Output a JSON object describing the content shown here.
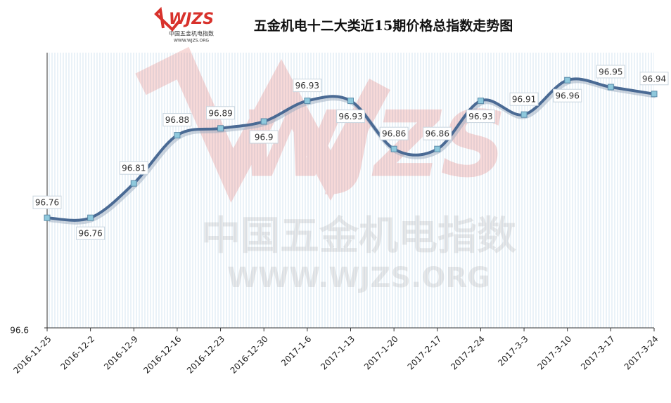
{
  "logo": {
    "mark": "WJZS",
    "name": "中国五金机电指数",
    "url": "WWW.WJZS.ORG"
  },
  "chart_data": {
    "type": "line",
    "title": "五金机电十二大类近15期价格总指数走势图",
    "categories": [
      "2016-11-25",
      "2016-12-2",
      "2016-12-9",
      "2016-12-16",
      "2016-12-23",
      "2016-12-30",
      "2017-1-6",
      "2017-1-13",
      "2017-1-20",
      "2017-2-17",
      "2017-2-24",
      "2017-3-3",
      "2017-3-10",
      "2017-3-17",
      "2017-3-24"
    ],
    "values": [
      96.76,
      96.76,
      96.81,
      96.88,
      96.89,
      96.9,
      96.93,
      96.93,
      96.86,
      96.86,
      96.93,
      96.91,
      96.96,
      96.95,
      96.94
    ],
    "color": "#4a6a94",
    "marker_color": "#8ec8dc",
    "ylim": [
      96.6,
      97.0
    ],
    "yticks": [
      96.6
    ],
    "grid": true
  }
}
